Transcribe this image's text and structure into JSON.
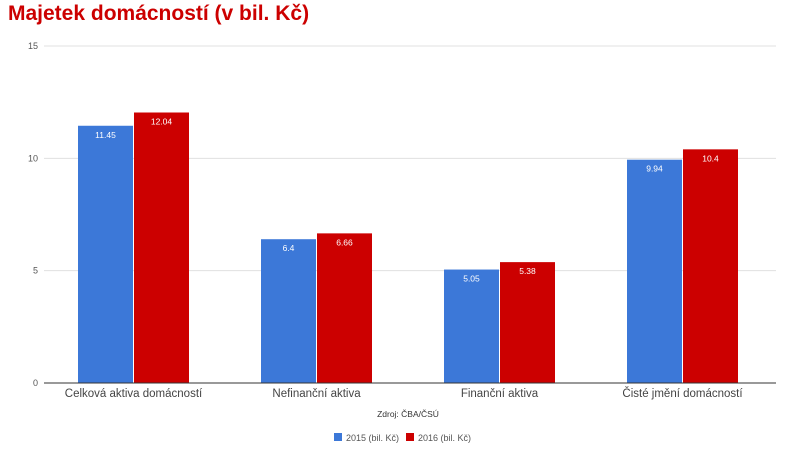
{
  "chart_data": {
    "type": "bar",
    "title": "Majetek domácností (v bil. Kč)",
    "categories": [
      "Celková aktiva domácností",
      "Nefinanční aktiva",
      "Finanční aktiva",
      "Čisté jmění domácností"
    ],
    "series": [
      {
        "name": "2015 (bil. Kč)",
        "color": "#3c78d8",
        "values": [
          11.45,
          6.4,
          5.05,
          9.94
        ],
        "labels": [
          "11.45",
          "6.4",
          "5.05",
          "9.94"
        ]
      },
      {
        "name": "2016 (bil. Kč)",
        "color": "#cc0000",
        "values": [
          12.04,
          6.66,
          5.38,
          10.4
        ],
        "labels": [
          "12.04",
          "6.66",
          "5.38",
          "10.4"
        ]
      }
    ],
    "ylim": [
      0,
      15
    ],
    "yticks": [
      0,
      5,
      10,
      15
    ],
    "source": "Zdroj: ČBA/ČSÚ",
    "grid": true,
    "legend_position": "bottom-center"
  },
  "colors": {
    "title": "#cc0000",
    "grid": "#e0e0e0",
    "axis": "#333333"
  }
}
